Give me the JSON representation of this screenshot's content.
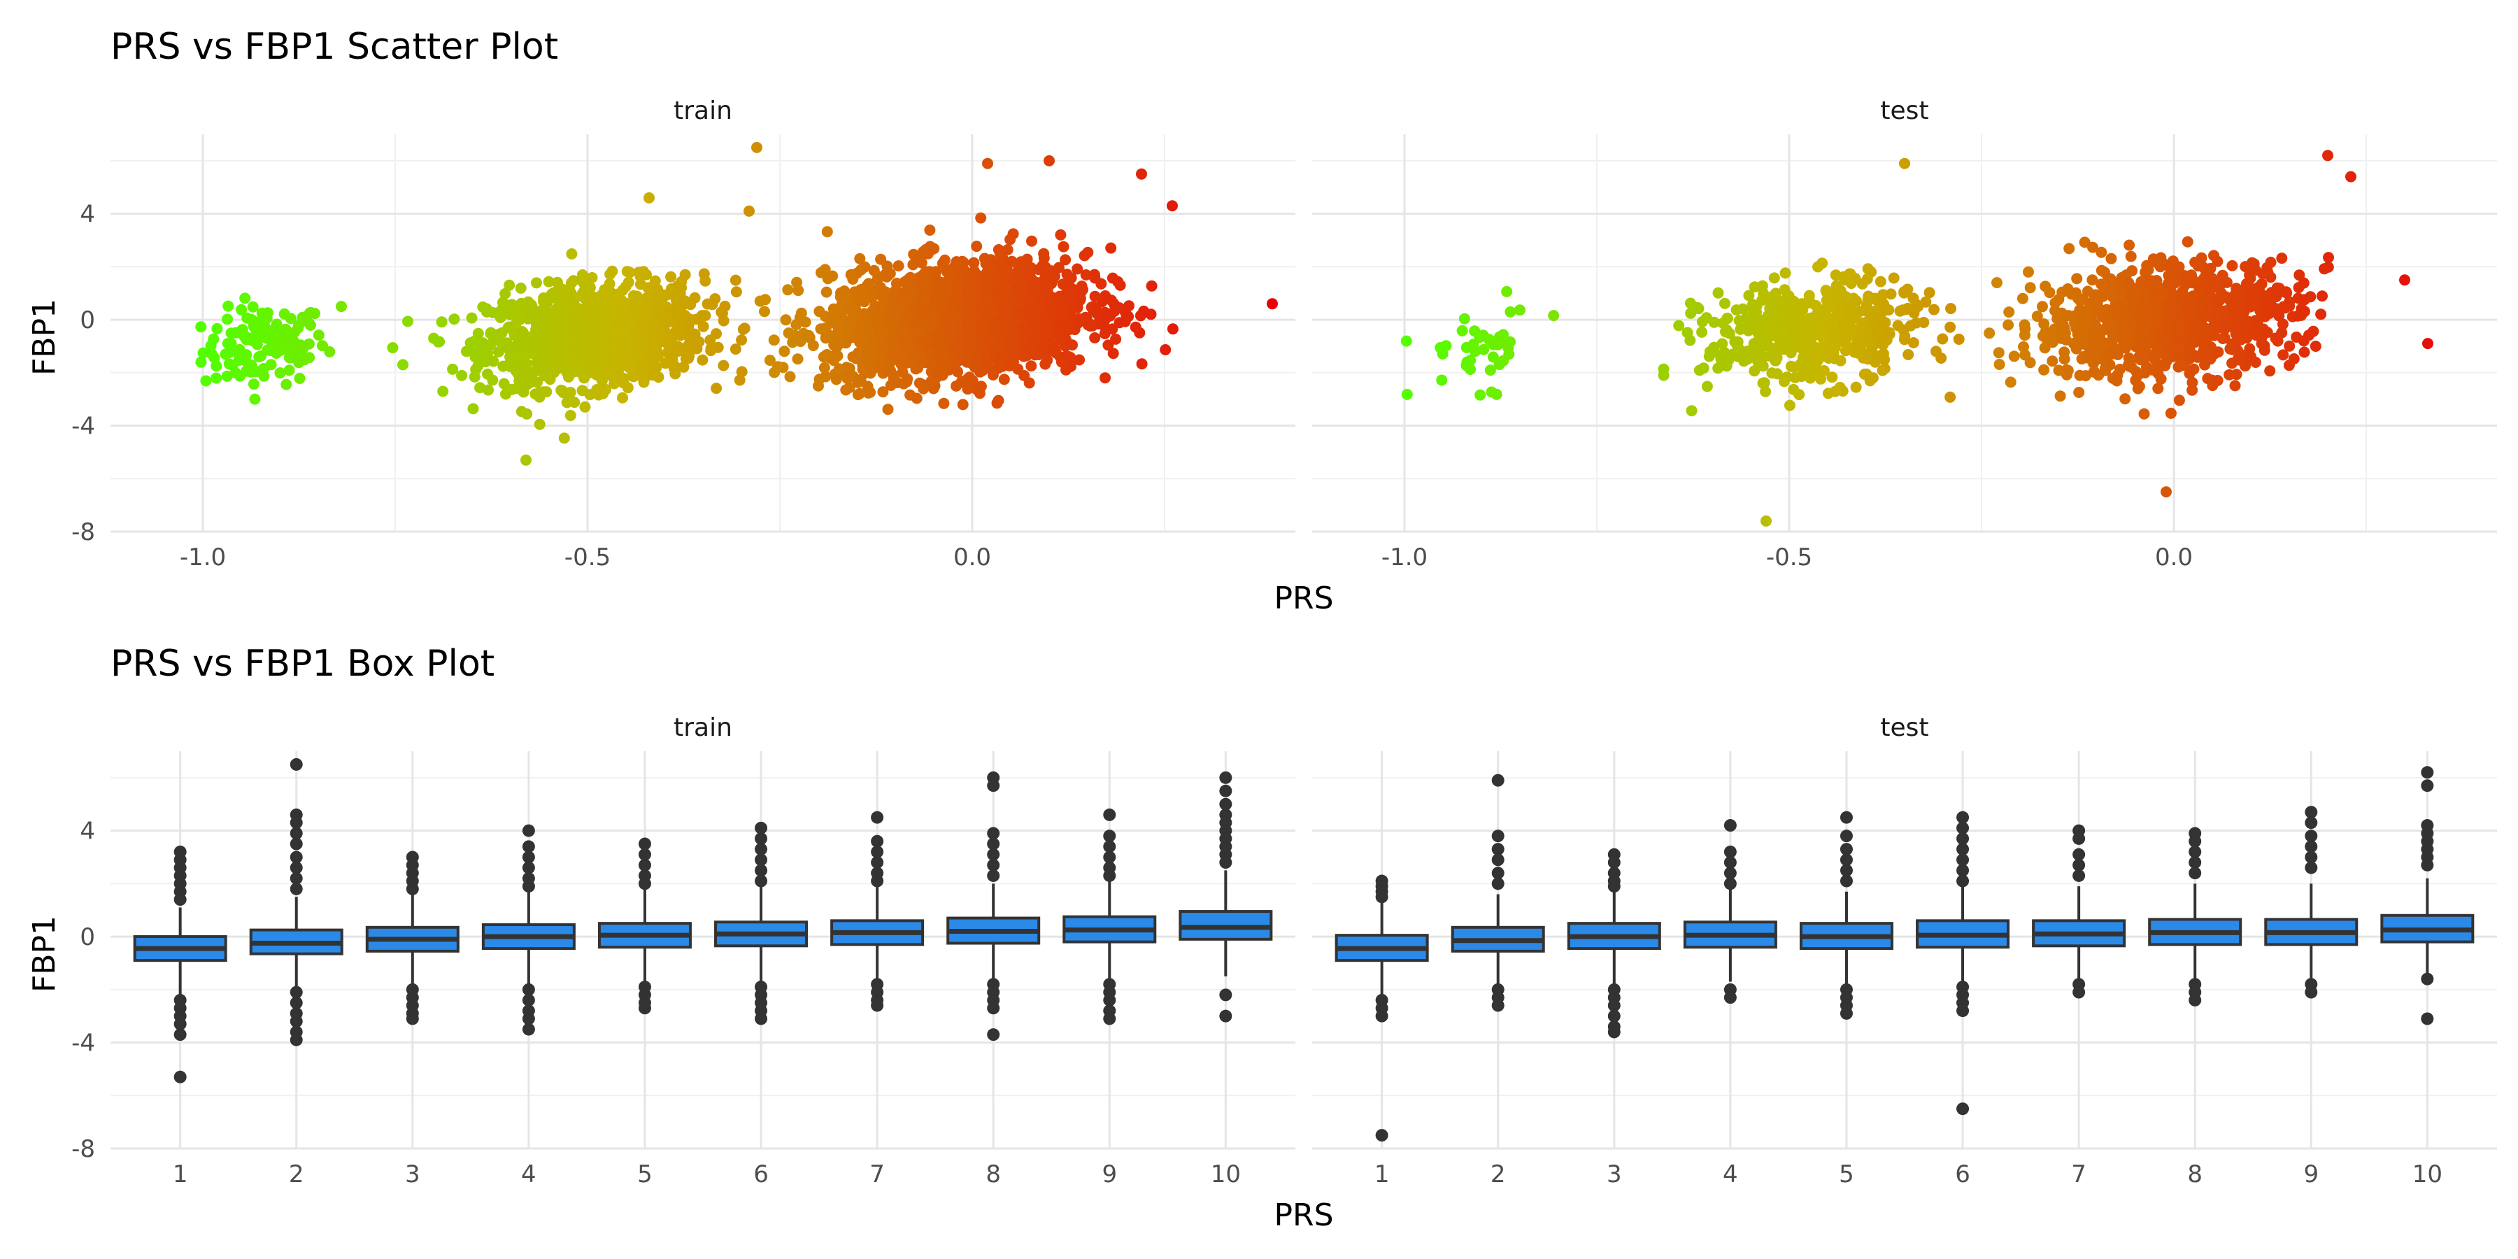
{
  "chart_data": [
    {
      "type": "scatter",
      "title": "PRS vs FBP1 Scatter Plot",
      "xlabel": "PRS",
      "ylabel": "FBP1",
      "facets": [
        "train",
        "test"
      ],
      "xlim": [
        -1.12,
        0.42
      ],
      "ylim": [
        -8,
        7
      ],
      "x_ticks": [
        "-1.0",
        "-0.5",
        "0.0"
      ],
      "y_ticks": [
        "4",
        "0",
        "-4",
        "-8"
      ],
      "x_tick_values": [
        -1.0,
        -0.5,
        0.0
      ],
      "y_tick_values": [
        4,
        0,
        -4,
        -8
      ],
      "color_low": "#52ff00",
      "color_mid": "#c8b400",
      "color_high": "#e8000b",
      "grid": true,
      "clusters": {
        "train": [
          {
            "cx": -0.92,
            "cy": -1.0,
            "sx": 0.04,
            "sy": 0.75,
            "n": 120
          },
          {
            "cx": -0.49,
            "cy": -0.55,
            "sx": 0.07,
            "sy": 0.95,
            "n": 1100
          },
          {
            "cx": -0.02,
            "cy": 0.0,
            "sx": 0.085,
            "sy": 1.05,
            "n": 1900
          }
        ],
        "test": [
          {
            "cx": -0.9,
            "cy": -1.1,
            "sx": 0.04,
            "sy": 0.75,
            "n": 40
          },
          {
            "cx": -0.47,
            "cy": -0.5,
            "sx": 0.07,
            "sy": 0.95,
            "n": 500
          },
          {
            "cx": -0.01,
            "cy": 0.0,
            "sx": 0.085,
            "sy": 1.05,
            "n": 900
          }
        ]
      },
      "extra_points": {
        "train": [
          [
            -0.28,
            6.5
          ],
          [
            -0.42,
            4.6
          ],
          [
            -0.29,
            4.1
          ],
          [
            -0.58,
            -5.3
          ],
          [
            0.39,
            0.6
          ],
          [
            0.02,
            5.9
          ],
          [
            0.1,
            6.0
          ],
          [
            0.26,
            4.3
          ],
          [
            0.22,
            5.5
          ],
          [
            -0.74,
            -1.7
          ],
          [
            -0.82,
            0.5
          ],
          [
            -0.2,
            -2.5
          ]
        ],
        "test": [
          [
            -0.35,
            5.9
          ],
          [
            -0.53,
            -7.6
          ],
          [
            -0.01,
            -6.5
          ],
          [
            0.3,
            1.5
          ],
          [
            0.33,
            -0.9
          ],
          [
            0.2,
            6.2
          ],
          [
            0.23,
            5.4
          ],
          [
            -0.23,
            1.4
          ]
        ]
      }
    },
    {
      "type": "box",
      "title": "PRS vs FBP1 Box Plot",
      "xlabel": "PRS",
      "ylabel": "FBP1",
      "facets": [
        "train",
        "test"
      ],
      "categories": [
        "1",
        "2",
        "3",
        "4",
        "5",
        "6",
        "7",
        "8",
        "9",
        "10"
      ],
      "ylim": [
        -8,
        7
      ],
      "y_ticks": [
        "4",
        "0",
        "-4",
        "-8"
      ],
      "y_tick_values": [
        4,
        0,
        -4,
        -8
      ],
      "box_color": "#2b89e8",
      "grid": true,
      "boxes": {
        "train": [
          {
            "q1": -0.9,
            "median": -0.45,
            "q3": 0.0,
            "wlo": -2.2,
            "whi": 1.1,
            "outliers": [
              3.2,
              2.9,
              2.6,
              2.3,
              2.0,
              1.7,
              1.4,
              -2.4,
              -2.7,
              -3.0,
              -3.3,
              -3.7,
              -5.3
            ]
          },
          {
            "q1": -0.65,
            "median": -0.25,
            "q3": 0.25,
            "wlo": -1.9,
            "whi": 1.5,
            "outliers": [
              6.5,
              4.6,
              4.3,
              3.9,
              3.5,
              3.0,
              2.6,
              2.2,
              1.8,
              -2.1,
              -2.5,
              -2.9,
              -3.2,
              -3.6,
              -3.9
            ]
          },
          {
            "q1": -0.55,
            "median": -0.1,
            "q3": 0.35,
            "wlo": -1.8,
            "whi": 1.6,
            "outliers": [
              3.0,
              2.7,
              2.4,
              2.1,
              1.8,
              -2.0,
              -2.3,
              -2.6,
              -2.9,
              -3.1
            ]
          },
          {
            "q1": -0.45,
            "median": 0.0,
            "q3": 0.45,
            "wlo": -1.8,
            "whi": 1.7,
            "outliers": [
              4.0,
              3.4,
              3.0,
              2.6,
              2.2,
              1.9,
              -2.0,
              -2.4,
              -2.8,
              -3.1,
              -3.5
            ]
          },
          {
            "q1": -0.4,
            "median": 0.05,
            "q3": 0.5,
            "wlo": -1.7,
            "whi": 1.8,
            "outliers": [
              3.5,
              3.1,
              2.7,
              2.3,
              2.0,
              -1.9,
              -2.2,
              -2.5,
              -2.7
            ]
          },
          {
            "q1": -0.35,
            "median": 0.1,
            "q3": 0.55,
            "wlo": -1.7,
            "whi": 1.9,
            "outliers": [
              4.1,
              3.7,
              3.3,
              2.9,
              2.5,
              2.1,
              -1.9,
              -2.2,
              -2.5,
              -2.8,
              -3.1
            ]
          },
          {
            "q1": -0.3,
            "median": 0.15,
            "q3": 0.6,
            "wlo": -1.6,
            "whi": 1.9,
            "outliers": [
              4.5,
              3.6,
              3.2,
              2.8,
              2.4,
              2.1,
              -1.8,
              -2.1,
              -2.4,
              -2.6
            ]
          },
          {
            "q1": -0.25,
            "median": 0.2,
            "q3": 0.7,
            "wlo": -1.6,
            "whi": 2.0,
            "outliers": [
              6.0,
              5.7,
              3.9,
              3.5,
              3.1,
              2.7,
              2.3,
              -1.8,
              -2.1,
              -2.4,
              -2.7,
              -3.7
            ]
          },
          {
            "q1": -0.2,
            "median": 0.25,
            "q3": 0.75,
            "wlo": -1.6,
            "whi": 2.1,
            "outliers": [
              4.6,
              3.8,
              3.4,
              3.0,
              2.6,
              2.3,
              -1.8,
              -2.1,
              -2.4,
              -2.8,
              -3.1
            ]
          },
          {
            "q1": -0.1,
            "median": 0.35,
            "q3": 0.95,
            "wlo": -1.5,
            "whi": 2.5,
            "outliers": [
              6.0,
              5.5,
              5.0,
              4.6,
              4.3,
              4.0,
              3.7,
              3.4,
              3.1,
              2.8,
              -2.2,
              -3.0
            ]
          }
        ],
        "test": [
          {
            "q1": -0.9,
            "median": -0.45,
            "q3": 0.05,
            "wlo": -2.2,
            "whi": 1.3,
            "outliers": [
              2.1,
              1.9,
              1.7,
              1.5,
              -2.4,
              -2.7,
              -3.0,
              -7.5
            ]
          },
          {
            "q1": -0.55,
            "median": -0.15,
            "q3": 0.35,
            "wlo": -1.8,
            "whi": 1.6,
            "outliers": [
              5.9,
              3.8,
              3.3,
              2.9,
              2.4,
              2.0,
              -2.0,
              -2.3,
              -2.6
            ]
          },
          {
            "q1": -0.45,
            "median": 0.0,
            "q3": 0.5,
            "wlo": -1.8,
            "whi": 1.7,
            "outliers": [
              3.1,
              2.8,
              2.4,
              2.1,
              1.9,
              -2.0,
              -2.3,
              -2.6,
              -3.0,
              -3.4,
              -3.6
            ]
          },
          {
            "q1": -0.4,
            "median": 0.05,
            "q3": 0.55,
            "wlo": -1.7,
            "whi": 1.8,
            "outliers": [
              4.2,
              3.2,
              2.8,
              2.4,
              2.0,
              -2.0,
              -2.3
            ]
          },
          {
            "q1": -0.45,
            "median": 0.0,
            "q3": 0.5,
            "wlo": -1.8,
            "whi": 1.7,
            "outliers": [
              4.5,
              3.8,
              3.3,
              2.9,
              2.5,
              2.1,
              -2.0,
              -2.3,
              -2.6,
              -2.9
            ]
          },
          {
            "q1": -0.4,
            "median": 0.05,
            "q3": 0.6,
            "wlo": -1.7,
            "whi": 1.9,
            "outliers": [
              4.5,
              4.1,
              3.7,
              3.3,
              2.9,
              2.5,
              2.1,
              -1.9,
              -2.2,
              -2.5,
              -2.8,
              -6.5
            ]
          },
          {
            "q1": -0.35,
            "median": 0.1,
            "q3": 0.6,
            "wlo": -1.6,
            "whi": 1.9,
            "outliers": [
              4.0,
              3.7,
              3.1,
              2.7,
              2.3,
              -1.8,
              -2.1
            ]
          },
          {
            "q1": -0.3,
            "median": 0.15,
            "q3": 0.65,
            "wlo": -1.6,
            "whi": 2.0,
            "outliers": [
              3.9,
              3.6,
              3.2,
              2.8,
              2.4,
              -1.8,
              -2.1,
              -2.4
            ]
          },
          {
            "q1": -0.3,
            "median": 0.15,
            "q3": 0.65,
            "wlo": -1.6,
            "whi": 2.0,
            "outliers": [
              4.7,
              4.3,
              3.8,
              3.4,
              3.0,
              2.6,
              -1.8,
              -2.1
            ]
          },
          {
            "q1": -0.2,
            "median": 0.25,
            "q3": 0.8,
            "wlo": -1.5,
            "whi": 2.2,
            "outliers": [
              6.2,
              5.7,
              4.2,
              3.9,
              3.6,
              3.3,
              3.0,
              2.7,
              -1.6,
              -3.1
            ]
          }
        ]
      }
    }
  ]
}
